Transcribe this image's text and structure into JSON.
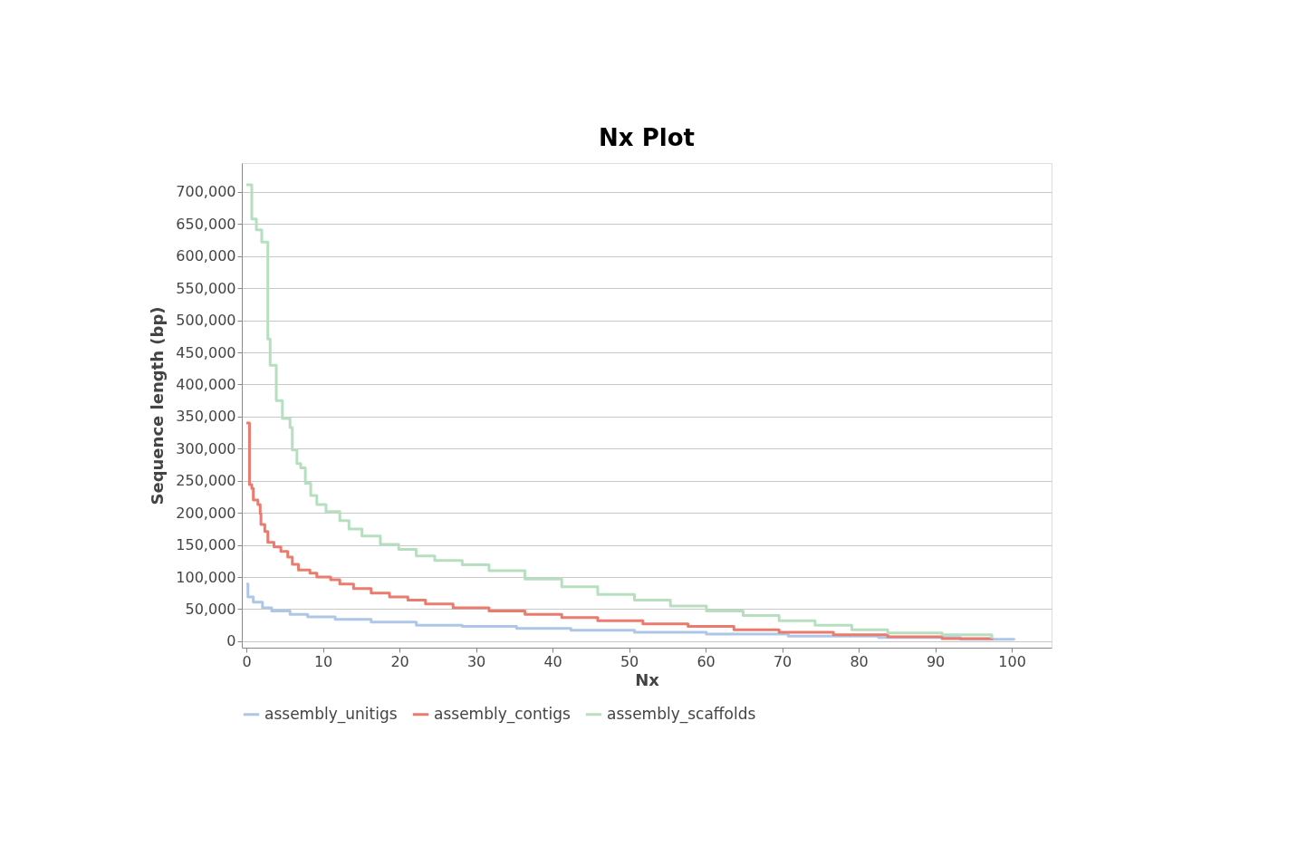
{
  "chart_data": {
    "type": "step",
    "title": "Nx Plot",
    "xlabel": "Nx",
    "ylabel": "Sequence length (bp)",
    "xlim": [
      -0.6,
      105.2
    ],
    "ylim": [
      -10000,
      745000
    ],
    "xticks": [
      0,
      10,
      20,
      30,
      40,
      50,
      60,
      70,
      80,
      90,
      100
    ],
    "yticks": [
      0,
      {
        "value": 50000,
        "label": "50,000"
      },
      {
        "value": 100000,
        "label": "100,000"
      },
      {
        "value": 150000,
        "label": "150,000"
      },
      {
        "value": 200000,
        "label": "200,000"
      },
      {
        "value": 250000,
        "label": "250,000"
      },
      {
        "value": 300000,
        "label": "300,000"
      },
      {
        "value": 350000,
        "label": "350,000"
      },
      {
        "value": 400000,
        "label": "400,000"
      },
      {
        "value": 450000,
        "label": "450,000"
      },
      {
        "value": 500000,
        "label": "500,000"
      },
      {
        "value": 550000,
        "label": "550,000"
      },
      {
        "value": 600000,
        "label": "600,000"
      },
      {
        "value": 650000,
        "label": "650,000"
      },
      {
        "value": 700000,
        "label": "700,000"
      }
    ],
    "grid": "y",
    "legend": "bottom",
    "series": [
      {
        "name": "assembly_unitigs",
        "color": "#aec7e8",
        "x": [
          0,
          0.2,
          0.9,
          2.1,
          3.3,
          5.7,
          8.0,
          11.6,
          16.3,
          22.2,
          28.2,
          35.3,
          42.4,
          50.7,
          60.1,
          70.8,
          82.6,
          93.3,
          100.3
        ],
        "values": [
          89000,
          69000,
          61000,
          52000,
          47000,
          42000,
          38000,
          34000,
          30000,
          25000,
          23000,
          20000,
          17000,
          14000,
          11000,
          8000,
          6000,
          3000,
          2000
        ]
      },
      {
        "name": "assembly_contigs",
        "color": "#ec7b6f",
        "x": [
          0,
          0.4,
          0.7,
          0.9,
          1.5,
          1.8,
          1.9,
          2.4,
          2.8,
          3.6,
          4.5,
          5.4,
          6.0,
          6.8,
          8.3,
          9.2,
          11.0,
          12.2,
          14.0,
          16.3,
          18.7,
          21.1,
          23.4,
          27.0,
          31.7,
          36.4,
          41.2,
          45.9,
          51.8,
          57.7,
          63.7,
          69.6,
          76.7,
          83.8,
          90.9,
          97.4
        ],
        "values": [
          340000,
          244000,
          238000,
          220000,
          213000,
          199000,
          182000,
          171000,
          154000,
          147000,
          140000,
          131000,
          120000,
          111000,
          106000,
          100000,
          96000,
          89000,
          82000,
          75000,
          69000,
          64000,
          58000,
          52000,
          47000,
          42000,
          37000,
          32000,
          27000,
          23000,
          18000,
          14000,
          10000,
          7000,
          4000,
          2000
        ]
      },
      {
        "name": "assembly_scaffolds",
        "color": "#b5dfbf",
        "x": [
          0,
          0.7,
          1.3,
          2.0,
          2.8,
          3.1,
          3.9,
          4.7,
          5.7,
          6.0,
          6.6,
          7.1,
          7.7,
          8.4,
          9.2,
          10.4,
          12.2,
          13.4,
          15.1,
          17.5,
          19.9,
          22.2,
          24.6,
          28.2,
          31.7,
          36.4,
          41.2,
          45.9,
          50.7,
          55.4,
          60.1,
          64.9,
          69.6,
          74.3,
          79.1,
          83.8,
          90.9,
          97.4
        ],
        "values": [
          711000,
          658000,
          641000,
          622000,
          471000,
          430000,
          375000,
          347000,
          333000,
          298000,
          277000,
          270000,
          246000,
          227000,
          213000,
          202000,
          188000,
          175000,
          164000,
          151000,
          143000,
          133000,
          126000,
          119000,
          110000,
          97000,
          85000,
          73000,
          64000,
          55000,
          47000,
          40000,
          32000,
          25000,
          18000,
          13000,
          10000,
          4000
        ]
      }
    ]
  }
}
